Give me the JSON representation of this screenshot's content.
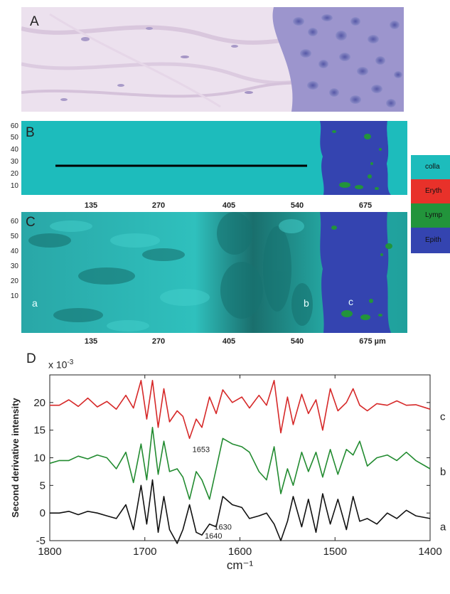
{
  "panels": {
    "a": "A",
    "b": "B",
    "c": "C",
    "d": "D"
  },
  "map_y_ticks": [
    "60",
    "50",
    "40",
    "30",
    "20",
    "10"
  ],
  "map_x_ticks_b": [
    "135",
    "270",
    "405",
    "540",
    "675"
  ],
  "map_x_ticks_c": [
    "135",
    "270",
    "405",
    "540",
    "675 µm"
  ],
  "legend": [
    {
      "label": "colla",
      "color": "#1dbcbc"
    },
    {
      "label": "Eryth",
      "color": "#e8312a"
    },
    {
      "label": "Lymp",
      "color": "#22943b"
    },
    {
      "label": "Epith",
      "color": "#3444b0"
    }
  ],
  "region_labels": {
    "a": "a",
    "b": "b",
    "c": "c"
  },
  "chart_data": {
    "type": "line",
    "ylabel": "Second derivative intensity",
    "xlabel": "cm⁻¹",
    "y_multiplier_base": "x 10",
    "y_multiplier_exp": "-3",
    "xlim": [
      1800,
      1400
    ],
    "ylim": [
      -5,
      25
    ],
    "x_ticks": [
      "1800",
      "1700",
      "1600",
      "1500",
      "1400"
    ],
    "y_ticks": [
      "20",
      "15",
      "10",
      "5",
      "0",
      "-5"
    ],
    "series": [
      {
        "name": "c",
        "color": "#d62828",
        "offset": 20,
        "points": [
          [
            1800,
            19.5
          ],
          [
            1790,
            19.5
          ],
          [
            1780,
            20.5
          ],
          [
            1770,
            19.3
          ],
          [
            1760,
            20.8
          ],
          [
            1750,
            19.2
          ],
          [
            1740,
            20.2
          ],
          [
            1730,
            18.8
          ],
          [
            1720,
            21.3
          ],
          [
            1712,
            19.0
          ],
          [
            1704,
            24.0
          ],
          [
            1698,
            17.0
          ],
          [
            1692,
            24.0
          ],
          [
            1686,
            15.5
          ],
          [
            1680,
            22.5
          ],
          [
            1674,
            16.5
          ],
          [
            1666,
            18.5
          ],
          [
            1660,
            17.5
          ],
          [
            1653,
            13.5
          ],
          [
            1646,
            17.0
          ],
          [
            1640,
            15.5
          ],
          [
            1632,
            21.0
          ],
          [
            1625,
            18.0
          ],
          [
            1618,
            22.3
          ],
          [
            1608,
            20.0
          ],
          [
            1598,
            21.0
          ],
          [
            1590,
            19.0
          ],
          [
            1580,
            21.3
          ],
          [
            1572,
            19.5
          ],
          [
            1564,
            24.0
          ],
          [
            1557,
            14.5
          ],
          [
            1550,
            21.0
          ],
          [
            1544,
            16.0
          ],
          [
            1535,
            21.5
          ],
          [
            1528,
            18.0
          ],
          [
            1520,
            20.5
          ],
          [
            1513,
            15.0
          ],
          [
            1505,
            22.5
          ],
          [
            1497,
            18.5
          ],
          [
            1488,
            20.0
          ],
          [
            1481,
            22.5
          ],
          [
            1474,
            19.5
          ],
          [
            1466,
            18.5
          ],
          [
            1456,
            19.8
          ],
          [
            1445,
            19.5
          ],
          [
            1435,
            20.3
          ],
          [
            1425,
            19.5
          ],
          [
            1415,
            19.6
          ],
          [
            1400,
            18.8
          ]
        ]
      },
      {
        "name": "b",
        "color": "#228b30",
        "offset": 10,
        "points": [
          [
            1800,
            9.0
          ],
          [
            1790,
            9.5
          ],
          [
            1780,
            9.5
          ],
          [
            1770,
            10.3
          ],
          [
            1760,
            9.8
          ],
          [
            1750,
            10.5
          ],
          [
            1740,
            10.0
          ],
          [
            1730,
            8.0
          ],
          [
            1720,
            11.0
          ],
          [
            1712,
            5.5
          ],
          [
            1704,
            12.5
          ],
          [
            1698,
            6.0
          ],
          [
            1692,
            15.5
          ],
          [
            1686,
            7.0
          ],
          [
            1680,
            13.0
          ],
          [
            1674,
            7.5
          ],
          [
            1666,
            8.0
          ],
          [
            1660,
            6.5
          ],
          [
            1653,
            2.5
          ],
          [
            1646,
            7.5
          ],
          [
            1640,
            6.0
          ],
          [
            1632,
            2.5
          ],
          [
            1625,
            8.0
          ],
          [
            1618,
            13.5
          ],
          [
            1608,
            12.5
          ],
          [
            1598,
            12.0
          ],
          [
            1590,
            11.0
          ],
          [
            1580,
            7.5
          ],
          [
            1572,
            6.0
          ],
          [
            1564,
            12.0
          ],
          [
            1557,
            3.5
          ],
          [
            1550,
            8.0
          ],
          [
            1544,
            5.0
          ],
          [
            1535,
            11.0
          ],
          [
            1528,
            7.5
          ],
          [
            1520,
            11.0
          ],
          [
            1513,
            6.5
          ],
          [
            1505,
            11.5
          ],
          [
            1497,
            7.0
          ],
          [
            1488,
            11.5
          ],
          [
            1481,
            10.5
          ],
          [
            1474,
            13.0
          ],
          [
            1466,
            8.5
          ],
          [
            1456,
            10.0
          ],
          [
            1445,
            10.5
          ],
          [
            1435,
            9.5
          ],
          [
            1425,
            11.0
          ],
          [
            1415,
            9.5
          ],
          [
            1400,
            8.0
          ]
        ]
      },
      {
        "name": "a",
        "color": "#111111",
        "offset": 0,
        "points": [
          [
            1800,
            0.0
          ],
          [
            1790,
            0.0
          ],
          [
            1780,
            0.3
          ],
          [
            1770,
            -0.3
          ],
          [
            1760,
            0.3
          ],
          [
            1750,
            0.0
          ],
          [
            1740,
            -0.5
          ],
          [
            1730,
            -1.0
          ],
          [
            1720,
            1.5
          ],
          [
            1712,
            -3.0
          ],
          [
            1704,
            5.0
          ],
          [
            1698,
            -2.0
          ],
          [
            1692,
            6.0
          ],
          [
            1686,
            -3.5
          ],
          [
            1680,
            3.0
          ],
          [
            1674,
            -3.0
          ],
          [
            1666,
            -5.5
          ],
          [
            1660,
            -3.0
          ],
          [
            1653,
            1.5
          ],
          [
            1646,
            -3.5
          ],
          [
            1640,
            -4.0
          ],
          [
            1632,
            -2.0
          ],
          [
            1625,
            -2.5
          ],
          [
            1618,
            3.0
          ],
          [
            1608,
            1.5
          ],
          [
            1598,
            1.0
          ],
          [
            1590,
            -1.0
          ],
          [
            1580,
            -0.5
          ],
          [
            1572,
            0.0
          ],
          [
            1564,
            -2.0
          ],
          [
            1557,
            -5.0
          ],
          [
            1550,
            -1.5
          ],
          [
            1544,
            3.0
          ],
          [
            1535,
            -2.5
          ],
          [
            1528,
            2.5
          ],
          [
            1520,
            -3.5
          ],
          [
            1513,
            3.5
          ],
          [
            1505,
            -2.0
          ],
          [
            1497,
            2.5
          ],
          [
            1488,
            -3.0
          ],
          [
            1481,
            3.0
          ],
          [
            1474,
            -1.5
          ],
          [
            1466,
            -1.0
          ],
          [
            1456,
            -2.0
          ],
          [
            1445,
            0.0
          ],
          [
            1435,
            -1.0
          ],
          [
            1425,
            0.5
          ],
          [
            1415,
            -0.5
          ],
          [
            1400,
            -1.0
          ]
        ]
      }
    ],
    "annotations": [
      {
        "text": "1653",
        "x": 1653,
        "y": 11.0
      },
      {
        "text": "1640",
        "x": 1640,
        "y": -4.6
      },
      {
        "text": "1630",
        "x": 1630,
        "y": -3.0
      }
    ]
  }
}
